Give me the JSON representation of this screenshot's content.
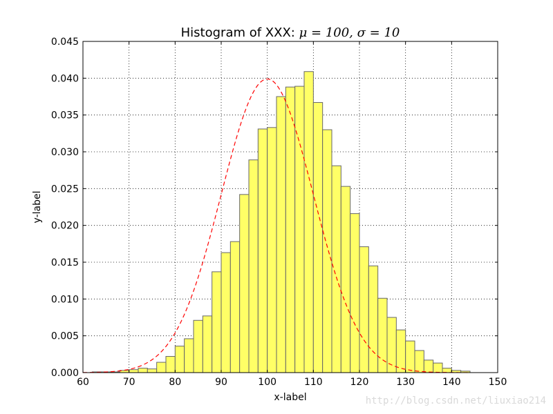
{
  "chart_data": {
    "type": "bar",
    "title_text": "Histogram of XXX: ",
    "title_mu": "μ = 100, ",
    "title_sigma": "σ = 10",
    "xlabel": "x-label",
    "ylabel": "y-label",
    "xlim": [
      60,
      150
    ],
    "ylim": [
      0,
      0.045
    ],
    "x_ticks": [
      "60",
      "70",
      "80",
      "90",
      "100",
      "110",
      "120",
      "130",
      "140",
      "150"
    ],
    "y_ticks": [
      "0.000",
      "0.005",
      "0.010",
      "0.015",
      "0.020",
      "0.025",
      "0.030",
      "0.035",
      "0.040",
      "0.045"
    ],
    "grid": true,
    "bar_color": "#ffff66",
    "bar_edge_color": "#666666",
    "curve_color": "#ff0000",
    "bin_edges": [
      60.0,
      62.0,
      64.0,
      66.0,
      68.0,
      70.0,
      72.0,
      74.0,
      76.0,
      78.0,
      80.0,
      82.0,
      84.0,
      86.0,
      88.0,
      90.0,
      92.0,
      94.0,
      96.0,
      98.0,
      100.0,
      102.0,
      104.0,
      106.0,
      108.0,
      110.0,
      112.0,
      114.0,
      116.0,
      118.0,
      120.0,
      122.0,
      124.0,
      126.0,
      128.0,
      130.0,
      132.0,
      134.0,
      136.0,
      138.0,
      140.0,
      142.0,
      144.0
    ],
    "values": [
      0.0,
      0.0001,
      0.0001,
      0.0001,
      0.0003,
      0.0004,
      0.0006,
      0.0005,
      0.0014,
      0.0022,
      0.0036,
      0.0046,
      0.0071,
      0.0077,
      0.0137,
      0.0163,
      0.0178,
      0.0242,
      0.0289,
      0.0331,
      0.0333,
      0.0375,
      0.0388,
      0.0389,
      0.0409,
      0.0367,
      0.033,
      0.0281,
      0.0253,
      0.0216,
      0.0171,
      0.0145,
      0.0101,
      0.0075,
      0.0058,
      0.0043,
      0.003,
      0.0017,
      0.0013,
      0.0006,
      0.0003,
      0.0002,
      0.0003
    ],
    "curve": {
      "type": "normal_pdf",
      "mu": 100,
      "sigma": 10,
      "style": "dashed"
    }
  },
  "watermark": "http://blog.csdn.net/liuxiao214"
}
